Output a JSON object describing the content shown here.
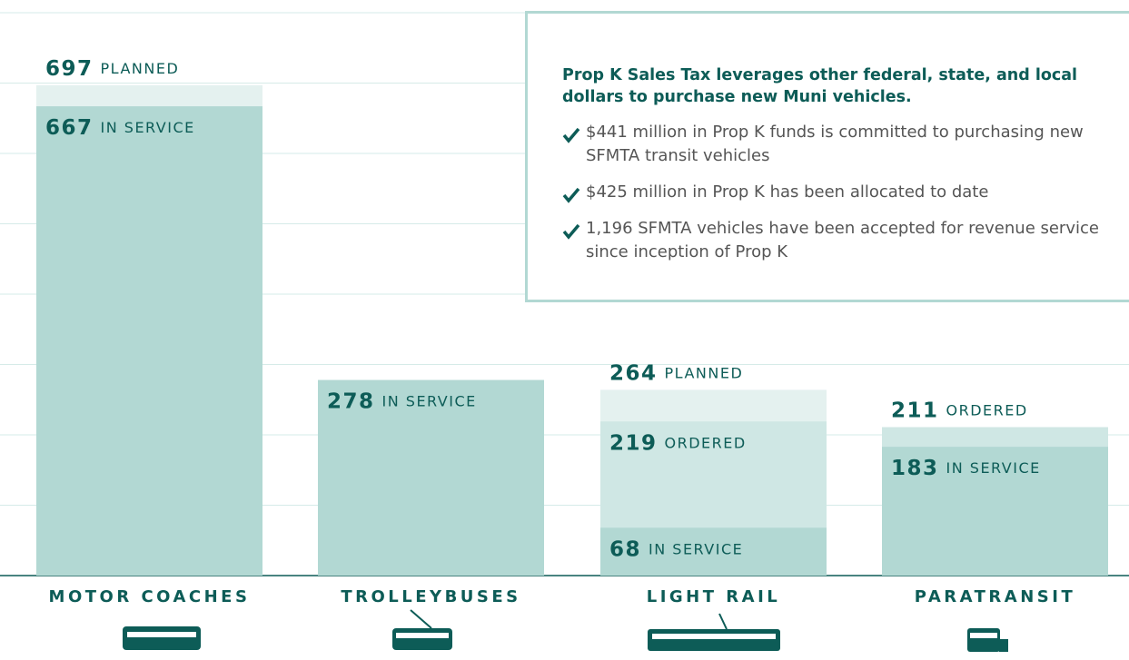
{
  "chart_data": {
    "type": "bar",
    "categories": [
      "MOTOR COACHES",
      "TROLLEYBUSES",
      "LIGHT RAIL",
      "PARATRANSIT"
    ],
    "series": [
      {
        "name": "PLANNED",
        "color": "#e4f1ef",
        "values": [
          697,
          null,
          264,
          null
        ]
      },
      {
        "name": "ORDERED",
        "color": "#cfe7e4",
        "values": [
          null,
          null,
          219,
          211
        ]
      },
      {
        "name": "IN SERVICE",
        "color": "#b2d8d3",
        "values": [
          667,
          278,
          68,
          183
        ]
      }
    ],
    "ylim": [
      0,
      800
    ],
    "yticks": [
      0,
      100,
      200,
      300,
      400,
      500,
      600,
      700,
      800
    ],
    "grid": true
  },
  "callout": {
    "title": "Prop K Sales Tax leverages other federal, state, and local dollars to purchase new Muni vehicles.",
    "items": [
      "$441 million in Prop K funds is committed to purchasing new SFMTA transit vehicles",
      "$425 million in Prop K has been allocated to date",
      "1,196 SFMTA vehicles have been accepted for revenue service since inception of Prop K"
    ]
  }
}
